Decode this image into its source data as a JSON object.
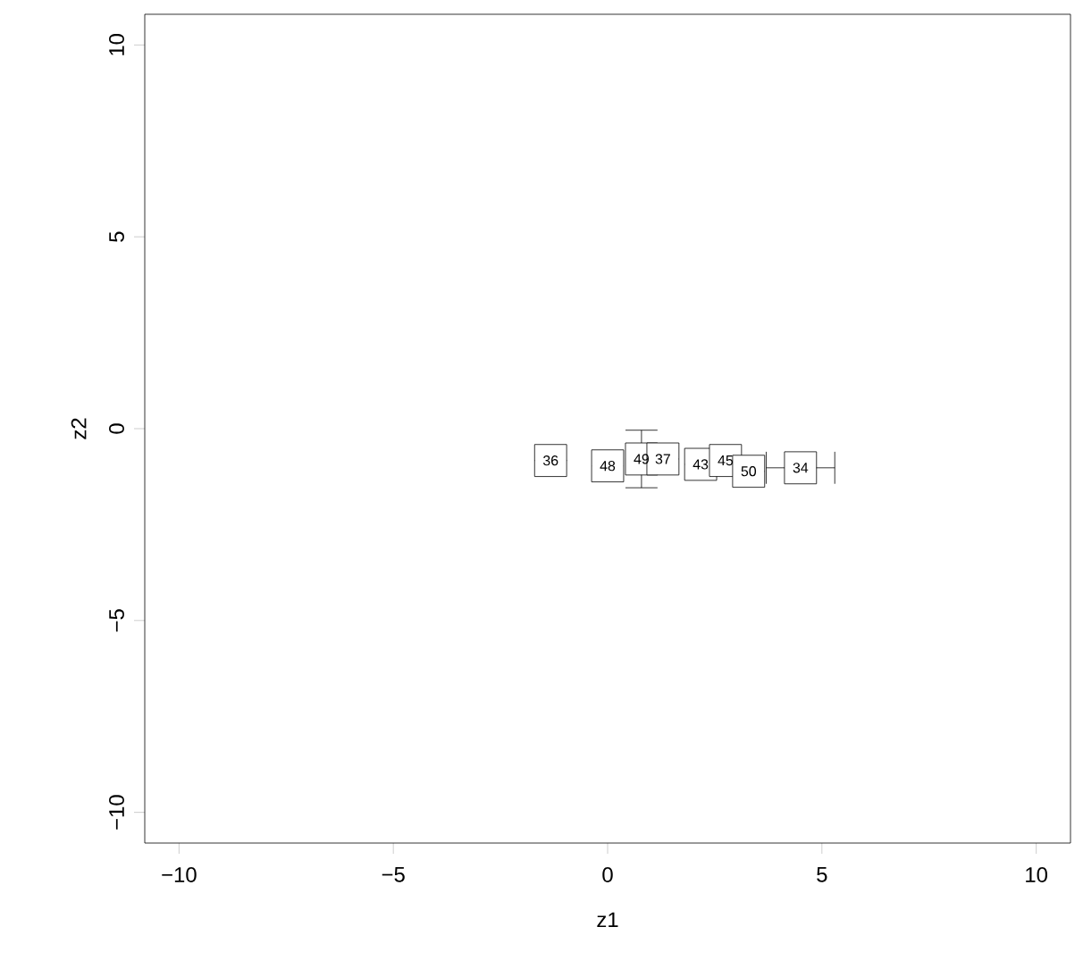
{
  "chart_data": {
    "type": "scatter",
    "xlabel": "z1",
    "ylabel": "z2",
    "marker": "square",
    "xlim": [
      -10.8,
      10.8
    ],
    "ylim": [
      -10.8,
      10.8
    ],
    "xticks": [
      {
        "value": -10,
        "label": "−10"
      },
      {
        "value": -5,
        "label": "−5"
      },
      0,
      5,
      10
    ],
    "yticks": [
      {
        "value": -10,
        "label": "−10"
      },
      {
        "value": -5,
        "label": "−5"
      },
      0,
      5,
      10
    ],
    "series": [
      {
        "color": "#000000",
        "x": [
          -1.33,
          0.0,
          0.79,
          1.29,
          2.17,
          2.75,
          3.29,
          4.5
        ],
        "values": [
          -0.83,
          -0.97,
          -0.79,
          -0.79,
          -0.93,
          -0.83,
          -1.11,
          -1.02
        ],
        "errors": [
          null,
          null,
          0.75,
          null,
          null,
          null,
          null,
          null
        ],
        "xerrors": [
          null,
          null,
          null,
          null,
          null,
          null,
          null,
          0.8
        ]
      }
    ],
    "annotations": [
      {
        "text": "36",
        "x": -1.33,
        "y": -0.83
      },
      {
        "text": "48",
        "x": 0.0,
        "y": -0.97
      },
      {
        "text": "49",
        "x": 0.79,
        "y": -0.79
      },
      {
        "text": "37",
        "x": 1.29,
        "y": -0.79
      },
      {
        "text": "43",
        "x": 2.17,
        "y": -0.93
      },
      {
        "text": "45",
        "x": 2.75,
        "y": -0.83
      },
      {
        "text": "50",
        "x": 3.29,
        "y": -1.11
      },
      {
        "text": "34",
        "x": 4.5,
        "y": -1.02
      }
    ]
  }
}
